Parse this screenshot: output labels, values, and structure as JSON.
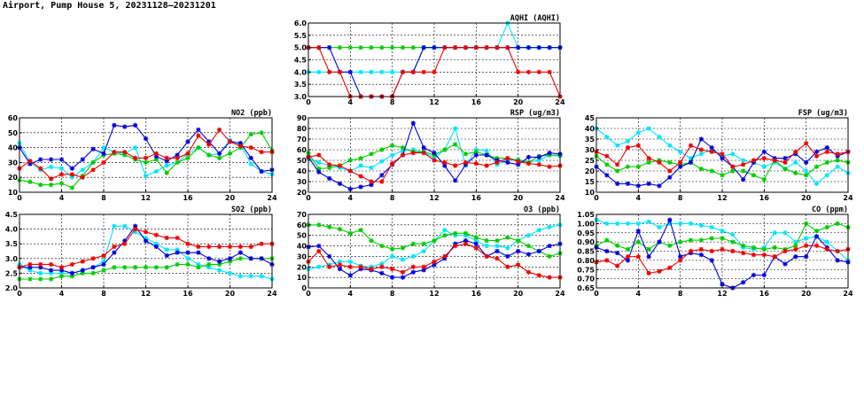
{
  "title": "Airport, Pump House 5, 20231128–20231201",
  "colors": {
    "cyan": "#00e5ff",
    "green": "#00cc00",
    "blue": "#0000dd",
    "red": "#ee0000"
  },
  "chart_data": [
    {
      "id": "aqhi",
      "type": "line",
      "title": "AQHI (AQHI)",
      "x": [
        0,
        1,
        2,
        3,
        4,
        5,
        6,
        7,
        8,
        9,
        10,
        11,
        12,
        13,
        14,
        15,
        16,
        17,
        18,
        19,
        20,
        21,
        22,
        23,
        24
      ],
      "xticks": [
        0,
        4,
        8,
        12,
        16,
        20,
        24
      ],
      "ylim": [
        3.0,
        6.0
      ],
      "yticks": [
        "3.0",
        "3.5",
        "4.0",
        "4.5",
        "5.0",
        "5.5",
        "6.0"
      ],
      "series": [
        {
          "color": "cyan",
          "values": [
            4,
            4,
            4,
            4,
            4,
            4,
            4,
            4,
            4,
            4,
            4,
            5,
            5,
            5,
            5,
            5,
            5,
            5,
            5,
            6,
            5,
            5,
            5,
            5,
            5
          ]
        },
        {
          "color": "green",
          "values": [
            5,
            5,
            5,
            5,
            5,
            5,
            5,
            5,
            5,
            5,
            5,
            5,
            5,
            5,
            5,
            5,
            5,
            5,
            5,
            5,
            5,
            5,
            5,
            5,
            5
          ]
        },
        {
          "color": "blue",
          "values": [
            5,
            5,
            5,
            4,
            4,
            3,
            3,
            3,
            3,
            4,
            4,
            5,
            5,
            5,
            5,
            5,
            5,
            5,
            5,
            5,
            5,
            5,
            5,
            5,
            5
          ]
        },
        {
          "color": "red",
          "values": [
            5,
            5,
            4,
            4,
            3,
            3,
            3,
            3,
            3,
            4,
            4,
            4,
            4,
            5,
            5,
            5,
            5,
            5,
            5,
            5,
            4,
            4,
            4,
            4,
            3
          ]
        }
      ]
    },
    {
      "id": "no2",
      "type": "line",
      "title": "NO2 (ppb)",
      "x": [
        0,
        1,
        2,
        3,
        4,
        5,
        6,
        7,
        8,
        9,
        10,
        11,
        12,
        13,
        14,
        15,
        16,
        17,
        18,
        19,
        20,
        21,
        22,
        23,
        24
      ],
      "xticks": [
        0,
        4,
        8,
        12,
        16,
        20,
        24
      ],
      "ylim": [
        10,
        60
      ],
      "yticks": [
        "10",
        "20",
        "30",
        "40",
        "50",
        "60"
      ],
      "series": [
        {
          "color": "cyan",
          "values": [
            43,
            30,
            25,
            27,
            26,
            20,
            25,
            30,
            40,
            37,
            36,
            40,
            21,
            24,
            28,
            30,
            36,
            40,
            35,
            36,
            45,
            42,
            29,
            24,
            22
          ]
        },
        {
          "color": "green",
          "values": [
            18,
            17,
            15,
            15,
            16,
            13,
            21,
            30,
            35,
            36,
            35,
            32,
            30,
            32,
            23,
            30,
            33,
            40,
            35,
            33,
            36,
            40,
            49,
            50,
            38
          ]
        },
        {
          "color": "blue",
          "values": [
            40,
            29,
            32,
            32,
            32,
            26,
            32,
            39,
            36,
            55,
            54,
            55,
            46,
            34,
            31,
            35,
            44,
            52,
            44,
            36,
            44,
            43,
            33,
            24,
            25
          ]
        },
        {
          "color": "red",
          "values": [
            26,
            31,
            26,
            19,
            22,
            22,
            20,
            25,
            30,
            37,
            37,
            33,
            33,
            36,
            33,
            33,
            36,
            48,
            42,
            52,
            44,
            41,
            40,
            37,
            37
          ]
        }
      ]
    },
    {
      "id": "rsp",
      "type": "line",
      "title": "RSP (ug/m3)",
      "x": [
        0,
        1,
        2,
        3,
        4,
        5,
        6,
        7,
        8,
        9,
        10,
        11,
        12,
        13,
        14,
        15,
        16,
        17,
        18,
        19,
        20,
        21,
        22,
        23,
        24
      ],
      "xticks": [
        0,
        4,
        8,
        12,
        16,
        20,
        24
      ],
      "ylim": [
        20,
        90
      ],
      "yticks": [
        "20",
        "30",
        "40",
        "50",
        "60",
        "70",
        "80",
        "90"
      ],
      "series": [
        {
          "color": "cyan",
          "values": [
            52,
            48,
            45,
            43,
            40,
            45,
            43,
            49,
            55,
            59,
            60,
            58,
            52,
            60,
            80,
            45,
            60,
            59,
            46,
            50,
            51,
            48,
            50,
            55,
            54
          ]
        },
        {
          "color": "green",
          "values": [
            57,
            42,
            43,
            45,
            50,
            52,
            56,
            60,
            64,
            62,
            58,
            58,
            55,
            60,
            65,
            56,
            58,
            55,
            52,
            52,
            50,
            48,
            54,
            55,
            55
          ]
        },
        {
          "color": "blue",
          "values": [
            53,
            39,
            33,
            28,
            23,
            25,
            27,
            36,
            46,
            55,
            85,
            62,
            57,
            45,
            31,
            46,
            55,
            55,
            50,
            48,
            46,
            53,
            53,
            57,
            56
          ]
        },
        {
          "color": "red",
          "values": [
            53,
            55,
            46,
            45,
            40,
            35,
            30,
            30,
            47,
            55,
            57,
            57,
            50,
            48,
            45,
            48,
            47,
            45,
            48,
            52,
            49,
            47,
            46,
            44,
            45
          ]
        }
      ]
    },
    {
      "id": "fsp",
      "type": "line",
      "title": "FSP (ug/m3)",
      "x": [
        0,
        1,
        2,
        3,
        4,
        5,
        6,
        7,
        8,
        9,
        10,
        11,
        12,
        13,
        14,
        15,
        16,
        17,
        18,
        19,
        20,
        21,
        22,
        23,
        24
      ],
      "xticks": [
        0,
        4,
        8,
        12,
        16,
        20,
        24
      ],
      "ylim": [
        10,
        45
      ],
      "yticks": [
        "10",
        "15",
        "20",
        "25",
        "30",
        "35",
        "40",
        "45"
      ],
      "series": [
        {
          "color": "cyan",
          "values": [
            40,
            36,
            32,
            34,
            38,
            40,
            36,
            32,
            29,
            26,
            28,
            30,
            27,
            28,
            25,
            24,
            22,
            24,
            21,
            24,
            20,
            14,
            18,
            22,
            19
          ]
        },
        {
          "color": "green",
          "values": [
            27,
            23,
            20,
            22,
            22,
            24,
            25,
            24,
            23,
            24,
            21,
            20,
            18,
            20,
            20,
            18,
            16,
            25,
            21,
            19,
            18,
            22,
            24,
            25,
            24
          ]
        },
        {
          "color": "blue",
          "values": [
            22,
            18,
            14,
            14,
            13,
            14,
            13,
            17,
            22,
            24,
            35,
            31,
            26,
            22,
            16,
            24,
            29,
            26,
            26,
            28,
            24,
            29,
            31,
            27,
            29
          ]
        },
        {
          "color": "red",
          "values": [
            29,
            27,
            23,
            31,
            32,
            26,
            24,
            20,
            24,
            32,
            30,
            29,
            28,
            22,
            23,
            25,
            26,
            25,
            24,
            29,
            33,
            27,
            29,
            28,
            29
          ]
        }
      ]
    },
    {
      "id": "so2",
      "type": "line",
      "title": "SO2 (ppb)",
      "x": [
        0,
        1,
        2,
        3,
        4,
        5,
        6,
        7,
        8,
        9,
        10,
        11,
        12,
        13,
        14,
        15,
        16,
        17,
        18,
        19,
        20,
        21,
        22,
        23,
        24
      ],
      "xticks": [
        0,
        4,
        8,
        12,
        16,
        20,
        24
      ],
      "ylim": [
        2.0,
        4.5
      ],
      "yticks": [
        "2.0",
        "2.5",
        "3.0",
        "3.5",
        "4.0",
        "4.5"
      ],
      "series": [
        {
          "color": "cyan",
          "values": [
            2.8,
            2.6,
            2.5,
            2.5,
            2.5,
            2.5,
            2.6,
            2.7,
            2.9,
            4.1,
            4.1,
            3.9,
            3.7,
            3.5,
            3.3,
            3.3,
            3.0,
            2.8,
            2.7,
            2.6,
            2.5,
            2.4,
            2.4,
            2.4,
            2.3
          ]
        },
        {
          "color": "green",
          "values": [
            2.3,
            2.3,
            2.3,
            2.3,
            2.4,
            2.4,
            2.5,
            2.5,
            2.6,
            2.7,
            2.7,
            2.7,
            2.7,
            2.7,
            2.7,
            2.8,
            2.8,
            2.7,
            2.8,
            2.8,
            2.9,
            3.0,
            3.0,
            3.0,
            3.0
          ]
        },
        {
          "color": "blue",
          "values": [
            2.7,
            2.7,
            2.7,
            2.6,
            2.6,
            2.5,
            2.6,
            2.7,
            2.8,
            3.2,
            3.6,
            4.1,
            3.6,
            3.4,
            3.1,
            3.2,
            3.2,
            3.2,
            3.0,
            2.9,
            3.0,
            3.2,
            3.0,
            3.0,
            2.8
          ]
        },
        {
          "color": "red",
          "values": [
            2.7,
            2.8,
            2.8,
            2.8,
            2.7,
            2.8,
            2.9,
            3.0,
            3.1,
            3.4,
            3.5,
            4.0,
            3.9,
            3.8,
            3.7,
            3.7,
            3.5,
            3.4,
            3.4,
            3.4,
            3.4,
            3.4,
            3.4,
            3.5,
            3.5
          ]
        }
      ]
    },
    {
      "id": "o3",
      "type": "line",
      "title": "O3 (ppb)",
      "x": [
        0,
        1,
        2,
        3,
        4,
        5,
        6,
        7,
        8,
        9,
        10,
        11,
        12,
        13,
        14,
        15,
        16,
        17,
        18,
        19,
        20,
        21,
        22,
        23,
        24
      ],
      "xticks": [
        0,
        4,
        8,
        12,
        16,
        20,
        24
      ],
      "ylim": [
        0,
        70
      ],
      "yticks": [
        "0",
        "10",
        "20",
        "30",
        "40",
        "50",
        "60",
        "70"
      ],
      "series": [
        {
          "color": "cyan",
          "values": [
            18,
            20,
            22,
            25,
            25,
            21,
            20,
            23,
            30,
            27,
            30,
            35,
            45,
            55,
            50,
            50,
            45,
            40,
            40,
            38,
            45,
            50,
            55,
            58,
            60
          ]
        },
        {
          "color": "green",
          "values": [
            60,
            60,
            58,
            56,
            52,
            55,
            45,
            40,
            37,
            38,
            42,
            42,
            45,
            50,
            52,
            52,
            48,
            45,
            45,
            48,
            45,
            40,
            35,
            30,
            33
          ]
        },
        {
          "color": "blue",
          "values": [
            39,
            40,
            30,
            18,
            12,
            18,
            17,
            14,
            10,
            10,
            15,
            17,
            22,
            28,
            42,
            45,
            42,
            30,
            35,
            30,
            35,
            32,
            35,
            40,
            42
          ]
        },
        {
          "color": "red",
          "values": [
            25,
            35,
            20,
            22,
            20,
            20,
            18,
            20,
            18,
            15,
            20,
            20,
            25,
            30,
            40,
            42,
            38,
            30,
            28,
            20,
            22,
            15,
            12,
            10,
            10
          ]
        }
      ]
    },
    {
      "id": "co",
      "type": "line",
      "title": "CO (ppm)",
      "x": [
        0,
        1,
        2,
        3,
        4,
        5,
        6,
        7,
        8,
        9,
        10,
        11,
        12,
        13,
        14,
        15,
        16,
        17,
        18,
        19,
        20,
        21,
        22,
        23,
        24
      ],
      "xticks": [
        0,
        4,
        8,
        12,
        16,
        20,
        24
      ],
      "ylim": [
        0.65,
        1.05
      ],
      "yticks": [
        "0.65",
        "0.70",
        "0.75",
        "0.80",
        "0.85",
        "0.90",
        "0.95",
        "1.00",
        "1.05"
      ],
      "series": [
        {
          "color": "cyan",
          "values": [
            1.02,
            1.0,
            1.0,
            1.0,
            1.0,
            1.01,
            0.98,
            1.0,
            1.0,
            1.0,
            0.99,
            0.98,
            0.96,
            0.94,
            0.87,
            0.86,
            0.87,
            0.95,
            0.95,
            0.9,
            0.92,
            0.93,
            0.9,
            0.85,
            0.8
          ]
        },
        {
          "color": "green",
          "values": [
            0.88,
            0.91,
            0.88,
            0.86,
            0.9,
            0.86,
            0.9,
            0.88,
            0.9,
            0.91,
            0.91,
            0.92,
            0.92,
            0.9,
            0.88,
            0.87,
            0.86,
            0.87,
            0.86,
            0.88,
            1.0,
            0.96,
            0.98,
            1.0,
            0.98
          ]
        },
        {
          "color": "blue",
          "values": [
            0.87,
            0.85,
            0.84,
            0.8,
            0.96,
            0.82,
            0.9,
            1.02,
            0.82,
            0.84,
            0.83,
            0.8,
            0.67,
            0.65,
            0.68,
            0.72,
            0.72,
            0.82,
            0.78,
            0.82,
            0.82,
            0.93,
            0.87,
            0.8,
            0.79
          ]
        },
        {
          "color": "red",
          "values": [
            0.79,
            0.8,
            0.77,
            0.82,
            0.82,
            0.73,
            0.74,
            0.76,
            0.8,
            0.85,
            0.86,
            0.85,
            0.86,
            0.85,
            0.84,
            0.83,
            0.83,
            0.82,
            0.85,
            0.86,
            0.88,
            0.88,
            0.86,
            0.85,
            0.86
          ]
        }
      ]
    }
  ]
}
